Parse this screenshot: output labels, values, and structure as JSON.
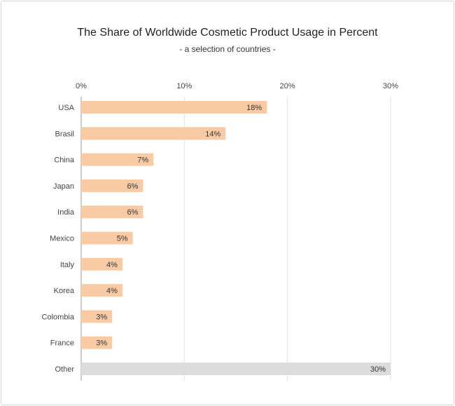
{
  "chart_data": {
    "type": "bar",
    "orientation": "horizontal",
    "title": "The Share of Worldwide Cosmetic Product Usage in Percent",
    "subtitle": "- a selection of countries -",
    "xlabel": "",
    "ylabel": "",
    "xlim": [
      0,
      30
    ],
    "ticks": [
      0,
      10,
      20,
      30
    ],
    "tick_labels": [
      "0%",
      "10%",
      "20%",
      "30%"
    ],
    "tick_position": "top",
    "grid": true,
    "categories": [
      "USA",
      "Brasil",
      "China",
      "Japan",
      "India",
      "Mexico",
      "Italy",
      "Korea",
      "Colombia",
      "France",
      "Other"
    ],
    "values": [
      18,
      14,
      7,
      6,
      6,
      5,
      4,
      4,
      3,
      3,
      30
    ],
    "value_labels": [
      "18%",
      "14%",
      "7%",
      "6%",
      "6%",
      "5%",
      "4%",
      "4%",
      "3%",
      "3%",
      "30%"
    ],
    "colors": {
      "bar": "#f9cba4",
      "other_bar": "#dcdcdc",
      "grid": "#e2e2e2",
      "axis": "#9a9a9a"
    }
  }
}
